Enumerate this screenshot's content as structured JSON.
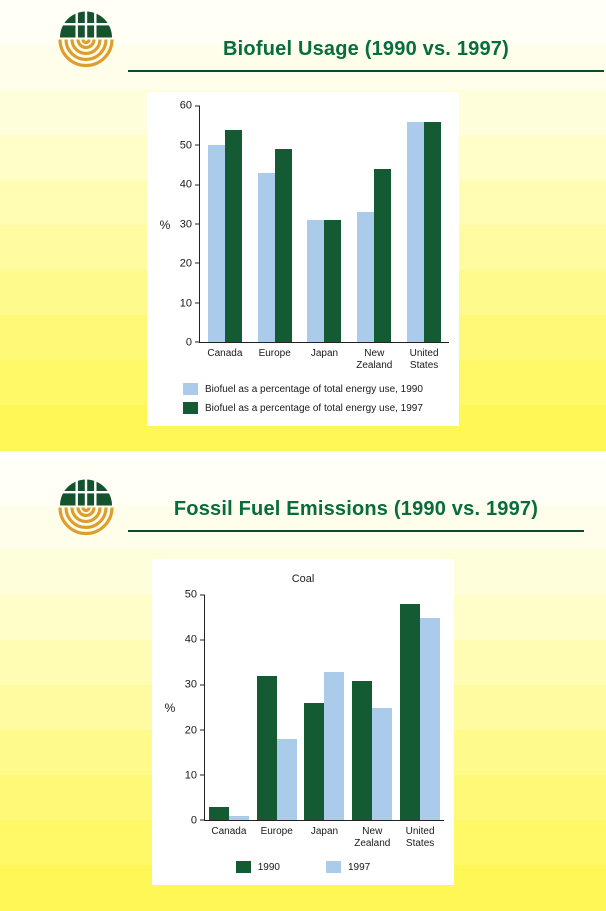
{
  "slides": [
    {
      "title": "Biofuel Usage (1990 vs. 1997)"
    },
    {
      "title": "Fossil Fuel Emissions (1990 vs. 1997)"
    }
  ],
  "colors": {
    "slide_title": "#076c3f",
    "underline": "#0d4a2d",
    "axis": "#222222",
    "panel_bg": "#ffffff",
    "bar_blue": "#aacbea",
    "bar_green": "#145a32",
    "logo_green": "#14532d",
    "logo_gold": "#dd9e2f"
  },
  "chart_data": [
    {
      "type": "bar",
      "title": "",
      "categories": [
        "Canada",
        "Europe",
        "Japan",
        "New Zealand",
        "United States"
      ],
      "series": [
        {
          "name": "Biofuel as a percentage of total energy use, 1990",
          "color": "#aacbea",
          "values": [
            50,
            43,
            31,
            33,
            56
          ]
        },
        {
          "name": "Biofuel as a percentage of total energy use, 1997",
          "color": "#145a32",
          "values": [
            54,
            49,
            31,
            44,
            56
          ]
        }
      ],
      "xlabel": "",
      "ylabel": "%",
      "ylim": [
        0,
        60
      ],
      "yticks": [
        0,
        10,
        20,
        30,
        40,
        50,
        60
      ],
      "grid": false,
      "legend_layout": "stacked",
      "legend_position": "bottom-left"
    },
    {
      "type": "bar",
      "title": "Coal",
      "categories": [
        "Canada",
        "Europe",
        "Japan",
        "New Zealand",
        "United States"
      ],
      "series": [
        {
          "name": "1990",
          "color": "#145a32",
          "values": [
            3,
            32,
            26,
            31,
            48
          ]
        },
        {
          "name": "1997",
          "color": "#aacbea",
          "values": [
            1,
            18,
            33,
            25,
            45
          ]
        }
      ],
      "xlabel": "",
      "ylabel": "%",
      "ylim": [
        0,
        50
      ],
      "yticks": [
        0,
        10,
        20,
        30,
        40,
        50
      ],
      "grid": false,
      "legend_layout": "row",
      "legend_position": "bottom-center"
    }
  ]
}
